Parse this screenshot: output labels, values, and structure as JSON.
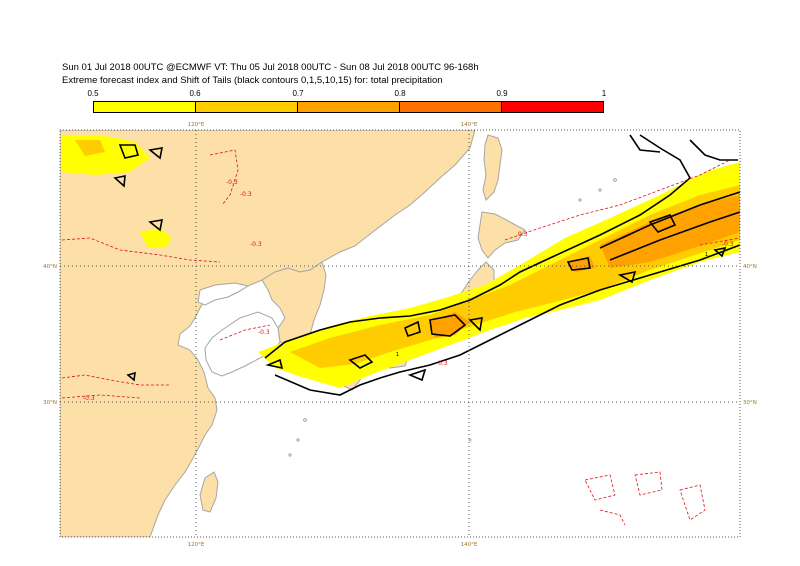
{
  "header": {
    "line1": "Sun 01 Jul 2018 00UTC @ECMWF VT: Thu 05 Jul 2018 00UTC - Sun 08 Jul 2018 00UTC  96-168h",
    "line2": "Extreme forecast index and Shift of Tails (black contours 0,1,5,10,15) for: total precipitation"
  },
  "colorbar": {
    "labels": [
      "0.5",
      "0.6",
      "0.7",
      "0.8",
      "0.9",
      "1"
    ],
    "colors": [
      "#ffff00",
      "#ffcc00",
      "#ffa200",
      "#ff7000",
      "#ff0000"
    ]
  },
  "map": {
    "lon_top": [
      "120°E",
      "140°E"
    ],
    "lon_bottom": [
      "120°E",
      "140°E"
    ],
    "lat_left": [
      "40°N",
      "30°N"
    ],
    "lat_right": [
      "40°N",
      "30°N"
    ],
    "contour_labels": [
      "-0.3",
      "-0.3",
      "-0.3",
      "-0.3",
      "-0.3",
      "0.3",
      "-0.3",
      "-0.3"
    ],
    "black_contour_labels": [
      "1",
      "1"
    ],
    "colors": {
      "land": "#fddfa8",
      "sea": "#ffffff",
      "coast": "#a6a6a6",
      "efi_05": "#ffff00",
      "efi_06": "#ffcc00",
      "efi_07": "#ffa200",
      "contour_red": "#e0101a",
      "contour_black": "#000000"
    }
  }
}
